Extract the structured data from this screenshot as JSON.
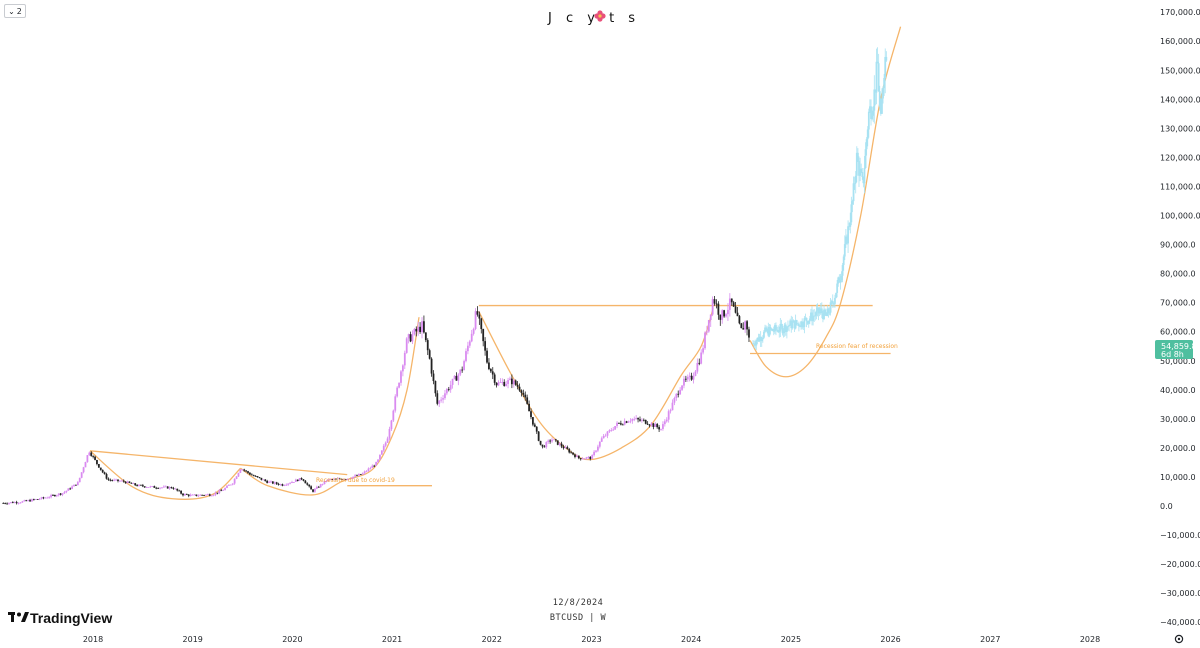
{
  "toolbar": {
    "interval_value": "2",
    "chevron_icon": "chevron-down-icon"
  },
  "header": {
    "title": "J c y t s",
    "title_icon": "flower-icon"
  },
  "footer": {
    "date": "12/8/2024",
    "symbol": "BTCUSD | W",
    "brand": "TradingView",
    "brand_icon": "tradingview-logo-icon",
    "settings_icon": "gear-icon"
  },
  "price_badge": {
    "price": "54,859.8",
    "countdown": "6d 8h"
  },
  "annotations": {
    "recession_covid": "Recession due to covid-19",
    "recession_fear": "Recession fear of recession"
  },
  "colors": {
    "up_candle": "#d98bf0",
    "down_candle": "#222222",
    "projection": "#a8e2f2",
    "curve": "#f5b56a",
    "badge": "#4fbf9f"
  },
  "chart_data": {
    "type": "candlestick",
    "title": "",
    "xlabel": "",
    "ylabel": "",
    "x_ticks": [
      "2018",
      "2019",
      "2020",
      "2021",
      "2022",
      "2023",
      "2024",
      "2025",
      "2026",
      "2027",
      "2028"
    ],
    "y_ticks": [
      "170,000.0",
      "160,000.0",
      "150,000.0",
      "140,000.0",
      "130,000.0",
      "120,000.0",
      "110,000.0",
      "100,000.0",
      "90,000.0",
      "80,000.0",
      "70,000.0",
      "60,000.0",
      "50,000.0",
      "40,000.0",
      "30,000.0",
      "20,000.0",
      "10,000.0",
      "0.0",
      "−10,000.0",
      "−20,000.0",
      "−30,000.0",
      "−40,000.0"
    ],
    "ylim": [
      -44000,
      172000
    ],
    "xlim": [
      2017.05,
      2028.3
    ],
    "series": [
      {
        "name": "BTCUSD",
        "kind": "price",
        "points": [
          [
            2017.1,
            1000
          ],
          [
            2017.3,
            1500
          ],
          [
            2017.5,
            2700
          ],
          [
            2017.7,
            4500
          ],
          [
            2017.85,
            8000
          ],
          [
            2017.96,
            19000
          ],
          [
            2018.05,
            14000
          ],
          [
            2018.15,
            9000
          ],
          [
            2018.3,
            8500
          ],
          [
            2018.45,
            7000
          ],
          [
            2018.6,
            6500
          ],
          [
            2018.8,
            6300
          ],
          [
            2018.9,
            4000
          ],
          [
            2019.0,
            3600
          ],
          [
            2019.2,
            4000
          ],
          [
            2019.3,
            5500
          ],
          [
            2019.4,
            8000
          ],
          [
            2019.48,
            13000
          ],
          [
            2019.6,
            10500
          ],
          [
            2019.75,
            8300
          ],
          [
            2019.9,
            7300
          ],
          [
            2020.1,
            9500
          ],
          [
            2020.2,
            5000
          ],
          [
            2020.35,
            9000
          ],
          [
            2020.55,
            9500
          ],
          [
            2020.7,
            11000
          ],
          [
            2020.85,
            15000
          ],
          [
            2020.95,
            23000
          ],
          [
            2021.05,
            40000
          ],
          [
            2021.15,
            57000
          ],
          [
            2021.3,
            62000
          ],
          [
            2021.38,
            50000
          ],
          [
            2021.45,
            35000
          ],
          [
            2021.55,
            40000
          ],
          [
            2021.7,
            47000
          ],
          [
            2021.85,
            67000
          ],
          [
            2021.95,
            50000
          ],
          [
            2022.05,
            42000
          ],
          [
            2022.2,
            43000
          ],
          [
            2022.3,
            40000
          ],
          [
            2022.4,
            30000
          ],
          [
            2022.5,
            20000
          ],
          [
            2022.6,
            23000
          ],
          [
            2022.75,
            19500
          ],
          [
            2022.87,
            16500
          ],
          [
            2023.0,
            16600
          ],
          [
            2023.1,
            23000
          ],
          [
            2023.25,
            28000
          ],
          [
            2023.4,
            30000
          ],
          [
            2023.55,
            29000
          ],
          [
            2023.7,
            26500
          ],
          [
            2023.8,
            34000
          ],
          [
            2023.9,
            42000
          ],
          [
            2024.0,
            44000
          ],
          [
            2024.1,
            52000
          ],
          [
            2024.18,
            65000
          ],
          [
            2024.22,
            72000
          ],
          [
            2024.3,
            65000
          ],
          [
            2024.4,
            70000
          ],
          [
            2024.5,
            60000
          ],
          [
            2024.55,
            64000
          ],
          [
            2024.59,
            54860
          ]
        ]
      },
      {
        "name": "",
        "kind": "projection",
        "points": [
          [
            2024.62,
            56000
          ],
          [
            2024.75,
            60000
          ],
          [
            2024.9,
            61000
          ],
          [
            2025.0,
            62500
          ],
          [
            2025.1,
            63000
          ],
          [
            2025.2,
            65000
          ],
          [
            2025.3,
            67000
          ],
          [
            2025.35,
            65000
          ],
          [
            2025.42,
            70000
          ],
          [
            2025.5,
            80000
          ],
          [
            2025.55,
            90000
          ],
          [
            2025.62,
            105000
          ],
          [
            2025.66,
            120000
          ],
          [
            2025.72,
            110000
          ],
          [
            2025.78,
            135000
          ],
          [
            2025.83,
            140000
          ],
          [
            2025.87,
            152000
          ],
          [
            2025.9,
            130000
          ],
          [
            2025.93,
            150000
          ],
          [
            2025.96,
            158000
          ]
        ]
      }
    ],
    "curves": [
      {
        "kind": "cup",
        "points": [
          [
            2017.97,
            19000
          ],
          [
            2018.4,
            6500
          ],
          [
            2018.8,
            2500
          ],
          [
            2019.2,
            4000
          ],
          [
            2019.48,
            13000
          ]
        ]
      },
      {
        "kind": "cup",
        "points": [
          [
            2019.48,
            13000
          ],
          [
            2019.75,
            7000
          ],
          [
            2020.2,
            3800
          ],
          [
            2020.5,
            8500
          ],
          [
            2020.8,
            12500
          ],
          [
            2021.0,
            24000
          ],
          [
            2021.15,
            40000
          ],
          [
            2021.27,
            65000
          ]
        ]
      },
      {
        "kind": "cup",
        "points": [
          [
            2021.87,
            67000
          ],
          [
            2022.2,
            45000
          ],
          [
            2022.5,
            28000
          ],
          [
            2022.8,
            18500
          ],
          [
            2023.0,
            16000
          ],
          [
            2023.3,
            20000
          ],
          [
            2023.6,
            28000
          ],
          [
            2023.9,
            45000
          ],
          [
            2024.1,
            55000
          ],
          [
            2024.22,
            68000
          ]
        ]
      },
      {
        "kind": "cup",
        "points": [
          [
            2024.59,
            57000
          ],
          [
            2024.75,
            48000
          ],
          [
            2024.95,
            44500
          ],
          [
            2025.15,
            48000
          ],
          [
            2025.35,
            58000
          ],
          [
            2025.5,
            70000
          ],
          [
            2025.7,
            100000
          ],
          [
            2025.9,
            140000
          ],
          [
            2026.1,
            165000
          ]
        ]
      },
      {
        "kind": "line",
        "points": [
          [
            2017.97,
            19000
          ],
          [
            2020.55,
            10800
          ]
        ]
      },
      {
        "kind": "line",
        "points": [
          [
            2021.87,
            69000
          ],
          [
            2025.82,
            69000
          ]
        ]
      },
      {
        "kind": "line",
        "points": [
          [
            2020.55,
            7000
          ],
          [
            2021.4,
            7000
          ]
        ]
      },
      {
        "kind": "line",
        "points": [
          [
            2024.59,
            52500
          ],
          [
            2026.0,
            52500
          ]
        ]
      }
    ]
  }
}
